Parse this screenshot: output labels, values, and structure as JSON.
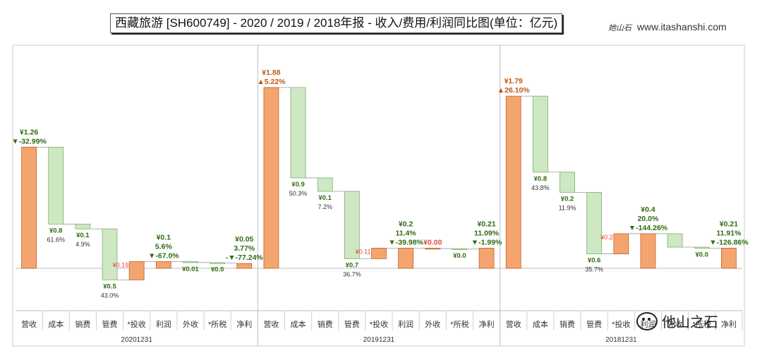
{
  "title": "西藏旅游 [SH600749] - 2020 / 2019 / 2018年报 - 收入/费用/利润同比图(单位：亿元)",
  "brand": {
    "mark": "她山石",
    "site": "www.itashanshi.com"
  },
  "watermark": {
    "text": "他山之石"
  },
  "colors": {
    "up": "#f4a46e",
    "up_stroke": "#c0622a",
    "down": "#cde8c2",
    "down_stroke": "#7fae6e",
    "green_text": "#2e6b12",
    "orange_text": "#c0570f",
    "red_text": "#e0453a"
  },
  "chart_data": {
    "type": "waterfall",
    "ylim": [
      -0.6,
      2.1
    ],
    "categories": [
      "营收",
      "成本",
      "销费",
      "管费",
      "*投收",
      "利润",
      "外收",
      "*所税",
      "净利"
    ],
    "groups": [
      {
        "period": "20201231",
        "bars": [
          {
            "cat": "营收",
            "from": 0,
            "to": 1.26,
            "kind": "up",
            "labels": [
              "¥1.26",
              "▼-32.99%"
            ],
            "label_pos": "above",
            "label_color": "green"
          },
          {
            "cat": "成本",
            "from": 1.26,
            "to": 0.46,
            "kind": "down",
            "labels": [
              "¥0.8",
              "61.6%"
            ],
            "label_pos": "below"
          },
          {
            "cat": "销费",
            "from": 0.46,
            "to": 0.41,
            "kind": "down",
            "labels": [
              "¥0.1",
              "4.9%"
            ],
            "label_pos": "below"
          },
          {
            "cat": "管费",
            "from": 0.41,
            "to": -0.12,
            "kind": "down",
            "labels": [
              "¥0.5",
              "43.0%"
            ],
            "label_pos": "below"
          },
          {
            "cat": "*投收",
            "from": -0.12,
            "to": 0.07,
            "kind": "up",
            "labels": [
              "¥0.19"
            ],
            "label_pos": "left",
            "label_color": "red"
          },
          {
            "cat": "利润",
            "from": 0,
            "to": 0.07,
            "kind": "up",
            "labels": [
              "¥0.1",
              "5.6%",
              "▼-67.0%"
            ],
            "label_pos": "above",
            "label_color": "green"
          },
          {
            "cat": "外收",
            "from": 0.07,
            "to": 0.06,
            "kind": "down",
            "labels": [
              "¥0.01"
            ],
            "label_pos": "below"
          },
          {
            "cat": "*所税",
            "from": 0.06,
            "to": 0.055,
            "kind": "down",
            "labels": [
              "¥0.0"
            ],
            "label_pos": "below"
          },
          {
            "cat": "净利",
            "from": 0,
            "to": 0.05,
            "kind": "up",
            "labels": [
              "¥0.05",
              "3.77%",
              "-▼-77.24%"
            ],
            "label_pos": "above",
            "label_color": "green"
          }
        ]
      },
      {
        "period": "20191231",
        "bars": [
          {
            "cat": "营收",
            "from": 0,
            "to": 1.88,
            "kind": "up",
            "labels": [
              "¥1.88",
              "▲5.22%"
            ],
            "label_pos": "above",
            "label_color": "orange"
          },
          {
            "cat": "成本",
            "from": 1.88,
            "to": 0.94,
            "kind": "down",
            "labels": [
              "¥0.9",
              "50.3%"
            ],
            "label_pos": "below"
          },
          {
            "cat": "销费",
            "from": 0.94,
            "to": 0.8,
            "kind": "down",
            "labels": [
              "¥0.1",
              "7.2%"
            ],
            "label_pos": "below"
          },
          {
            "cat": "管费",
            "from": 0.8,
            "to": 0.1,
            "kind": "down",
            "labels": [
              "¥0.7",
              "36.7%"
            ],
            "label_pos": "below"
          },
          {
            "cat": "*投收",
            "from": 0.1,
            "to": 0.21,
            "kind": "up",
            "labels": [
              "¥0.11"
            ],
            "label_pos": "left",
            "label_color": "red"
          },
          {
            "cat": "利润",
            "from": 0,
            "to": 0.21,
            "kind": "up",
            "labels": [
              "¥0.2",
              "11.4%",
              "▼-39.98%"
            ],
            "label_pos": "above",
            "label_color": "green"
          },
          {
            "cat": "外收",
            "from": 0.21,
            "to": 0.205,
            "kind": "up",
            "labels": [
              "¥0.00"
            ],
            "label_pos": "above",
            "label_color": "red"
          },
          {
            "cat": "*所税",
            "from": 0.205,
            "to": 0.2,
            "kind": "down",
            "labels": [
              "¥0.0"
            ],
            "label_pos": "below"
          },
          {
            "cat": "净利",
            "from": 0,
            "to": 0.21,
            "kind": "up",
            "labels": [
              "¥0.21",
              "11.09%",
              "▼-1.99%"
            ],
            "label_pos": "above",
            "label_color": "green"
          }
        ]
      },
      {
        "period": "20181231",
        "bars": [
          {
            "cat": "营收",
            "from": 0,
            "to": 1.79,
            "kind": "up",
            "labels": [
              "¥1.79",
              "▲26.10%"
            ],
            "label_pos": "above",
            "label_color": "orange"
          },
          {
            "cat": "成本",
            "from": 1.79,
            "to": 1.0,
            "kind": "down",
            "labels": [
              "¥0.8",
              "43.8%"
            ],
            "label_pos": "below"
          },
          {
            "cat": "销费",
            "from": 1.0,
            "to": 0.79,
            "kind": "down",
            "labels": [
              "¥0.2",
              "11.9%"
            ],
            "label_pos": "below"
          },
          {
            "cat": "管费",
            "from": 0.79,
            "to": 0.15,
            "kind": "down",
            "labels": [
              "¥0.6",
              "35.7%"
            ],
            "label_pos": "below"
          },
          {
            "cat": "*投收",
            "from": 0.15,
            "to": 0.36,
            "kind": "up",
            "labels": [
              "¥0.2"
            ],
            "label_pos": "left",
            "label_color": "red"
          },
          {
            "cat": "利润",
            "from": 0,
            "to": 0.36,
            "kind": "up",
            "labels": [
              "¥0.4",
              "20.0%",
              "▼-144.26%"
            ],
            "label_pos": "above",
            "label_color": "green"
          },
          {
            "cat": "外收",
            "from": 0.36,
            "to": 0.22,
            "kind": "down",
            "labels": [],
            "label_pos": "below"
          },
          {
            "cat": "*所税",
            "from": 0.22,
            "to": 0.21,
            "kind": "down",
            "labels": [
              "¥0.0"
            ],
            "label_pos": "below"
          },
          {
            "cat": "净利",
            "from": 0,
            "to": 0.21,
            "kind": "up",
            "labels": [
              "¥0.21",
              "11.91%",
              "▼-126.86%"
            ],
            "label_pos": "above",
            "label_color": "green"
          }
        ]
      }
    ]
  }
}
